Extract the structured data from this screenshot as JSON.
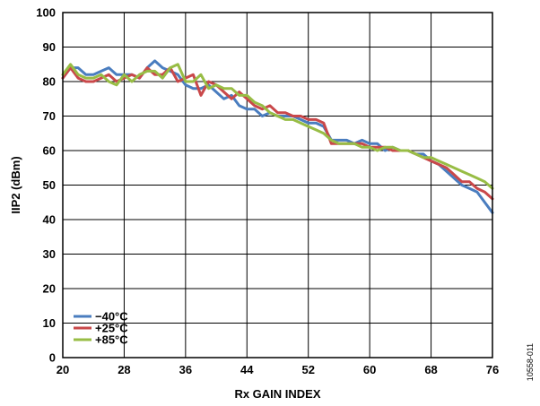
{
  "chart_data": {
    "type": "line",
    "xlabel": "Rx GAIN INDEX",
    "ylabel": "IIP2 (dBm)",
    "xlim": [
      20,
      76
    ],
    "ylim": [
      0,
      100
    ],
    "x_ticks": [
      "20",
      "28",
      "36",
      "44",
      "52",
      "60",
      "68",
      "76"
    ],
    "y_ticks": [
      "0",
      "10",
      "20",
      "30",
      "40",
      "50",
      "60",
      "70",
      "80",
      "90",
      "100"
    ],
    "grid": true,
    "legend_position": "bottom-left",
    "figure_id": "10558-011",
    "series": [
      {
        "name": "−40°C",
        "color": "#4a7dbf",
        "x": [
          20,
          21,
          22,
          23,
          24,
          25,
          26,
          27,
          28,
          29,
          30,
          31,
          32,
          33,
          34,
          35,
          36,
          37,
          38,
          39,
          40,
          41,
          42,
          43,
          44,
          45,
          46,
          47,
          48,
          49,
          50,
          51,
          52,
          53,
          54,
          55,
          56,
          57,
          58,
          59,
          60,
          61,
          62,
          63,
          64,
          65,
          66,
          67,
          68,
          69,
          70,
          71,
          72,
          73,
          74,
          75,
          76
        ],
        "values": [
          81,
          84,
          84,
          82,
          82,
          83,
          84,
          82,
          82,
          82,
          81,
          84,
          86,
          84,
          83,
          82,
          79,
          78,
          78,
          79,
          77,
          75,
          76,
          73,
          72,
          72,
          70,
          71,
          70,
          70,
          70,
          69,
          68,
          68,
          67,
          63,
          63,
          63,
          62,
          63,
          62,
          62,
          60,
          61,
          60,
          60,
          59,
          59,
          57,
          56,
          54,
          52,
          50,
          49,
          48,
          45,
          42
        ]
      },
      {
        "name": "+25°C",
        "color": "#c9484a",
        "x": [
          20,
          21,
          22,
          23,
          24,
          25,
          26,
          27,
          28,
          29,
          30,
          31,
          32,
          33,
          34,
          35,
          36,
          37,
          38,
          39,
          40,
          41,
          42,
          43,
          44,
          45,
          46,
          47,
          48,
          49,
          50,
          51,
          52,
          53,
          54,
          55,
          56,
          57,
          58,
          59,
          60,
          61,
          62,
          63,
          64,
          65,
          66,
          67,
          68,
          69,
          70,
          71,
          72,
          73,
          74,
          75,
          76
        ],
        "values": [
          81,
          84,
          81,
          80,
          80,
          81,
          82,
          80,
          81,
          82,
          81,
          84,
          82,
          82,
          84,
          80,
          81,
          82,
          76,
          80,
          79,
          77,
          75,
          77,
          75,
          73,
          72,
          73,
          71,
          71,
          70,
          70,
          69,
          69,
          68,
          62,
          62,
          62,
          62,
          62,
          61,
          61,
          61,
          60,
          60,
          60,
          59,
          58,
          57,
          56,
          55,
          53,
          51,
          51,
          49,
          48,
          46
        ]
      },
      {
        "name": "+85°C",
        "color": "#98bd45",
        "x": [
          20,
          21,
          22,
          23,
          24,
          25,
          26,
          27,
          28,
          29,
          30,
          31,
          32,
          33,
          34,
          35,
          36,
          37,
          38,
          39,
          40,
          41,
          42,
          43,
          44,
          45,
          46,
          47,
          48,
          49,
          50,
          51,
          52,
          53,
          54,
          55,
          56,
          57,
          58,
          59,
          60,
          61,
          62,
          63,
          64,
          65,
          66,
          67,
          68,
          69,
          70,
          71,
          72,
          73,
          74,
          75,
          76
        ],
        "values": [
          82,
          85,
          82,
          81,
          81,
          82,
          80,
          79,
          82,
          80,
          82,
          83,
          83,
          81,
          84,
          85,
          80,
          80,
          82,
          78,
          79,
          78,
          78,
          76,
          76,
          74,
          73,
          71,
          70,
          69,
          69,
          68,
          67,
          66,
          65,
          63,
          62,
          62,
          62,
          61,
          61,
          60,
          61,
          61,
          60,
          60,
          59,
          58,
          58,
          57,
          56,
          55,
          54,
          53,
          52,
          51,
          49
        ]
      }
    ]
  }
}
